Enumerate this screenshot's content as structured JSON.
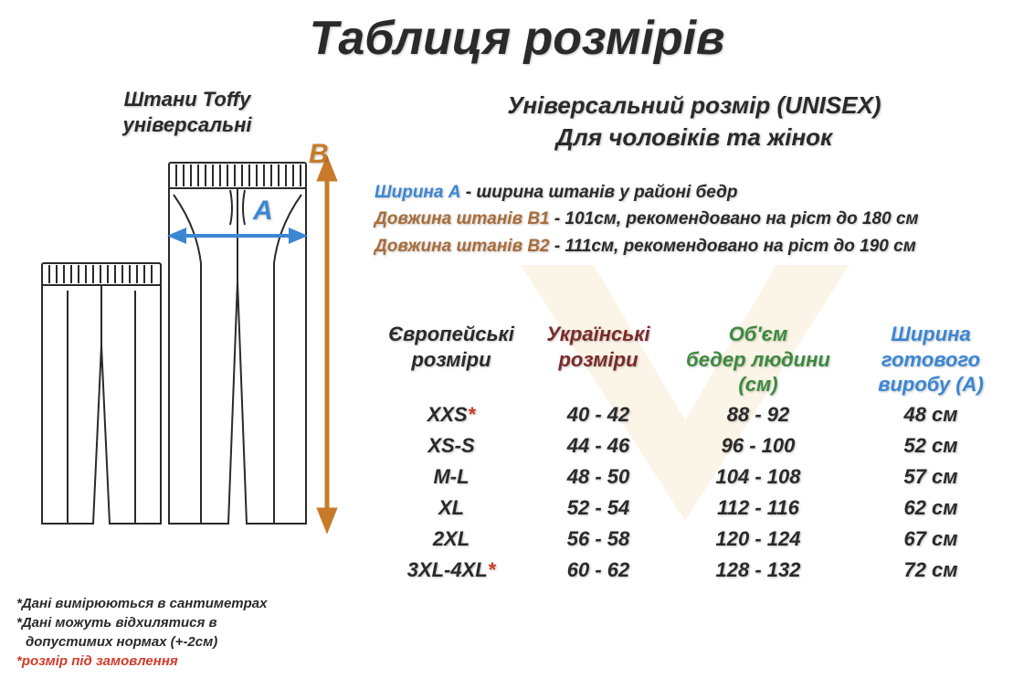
{
  "title": "Таблиця розмірів",
  "product_label_line1": "Штани Toffy",
  "product_label_line2": "універсальні",
  "diagram": {
    "label_a": "A",
    "label_b": "B",
    "a_color": "#3a87d4",
    "b_color": "#c77b2a",
    "outline_color": "#2a2a2a",
    "arrow_color": "#c77b2a"
  },
  "subtitle_line1": "Універсальний розмір (UNISEX)",
  "subtitle_line2": "Для чоловіків та жінок",
  "legend": {
    "a_label": "Ширина А",
    "a_text": " - ширина штанів у районі бедр",
    "b1_label": "Довжина штанів В1",
    "b1_text": " - 101см, рекомендовано на ріст до 180 см",
    "b2_label": "Довжина штанів В2",
    "b2_text": " - 111см, рекомендовано на ріст до 190 см"
  },
  "table": {
    "headers": {
      "eu": "Європейські розміри",
      "ua": "Українські розміри",
      "hips": "Об'єм бедер людини (см)",
      "width": "Ширина готового виробу (А)"
    },
    "header_colors": {
      "eu": "#2a2a2a",
      "ua": "#7a2a2a",
      "hips": "#3c8a3c",
      "width": "#3a87d4"
    },
    "rows": [
      {
        "eu": "XXS",
        "star": true,
        "ua": "40 - 42",
        "hips": "88 - 92",
        "width": "48 см"
      },
      {
        "eu": "XS-S",
        "star": false,
        "ua": "44 - 46",
        "hips": "96 - 100",
        "width": "52 см"
      },
      {
        "eu": "M-L",
        "star": false,
        "ua": "48 - 50",
        "hips": "104 - 108",
        "width": "57 см"
      },
      {
        "eu": "XL",
        "star": false,
        "ua": "52 - 54",
        "hips": "112 - 116",
        "width": "62 см"
      },
      {
        "eu": "2XL",
        "star": false,
        "ua": "56 - 58",
        "hips": "120 - 124",
        "width": "67 см"
      },
      {
        "eu": "3XL-4XL",
        "star": true,
        "ua": "60 - 62",
        "hips": "128 - 132",
        "width": "72 см"
      }
    ]
  },
  "footnotes": {
    "l1": "*Дані вимірюються в сантиметрах",
    "l2a": "*Дані можуть відхилятися в",
    "l2b": "допустимих нормах (+-2см)",
    "l3": "*розмір під замовлення"
  },
  "watermark_color": "#f3d9a8"
}
